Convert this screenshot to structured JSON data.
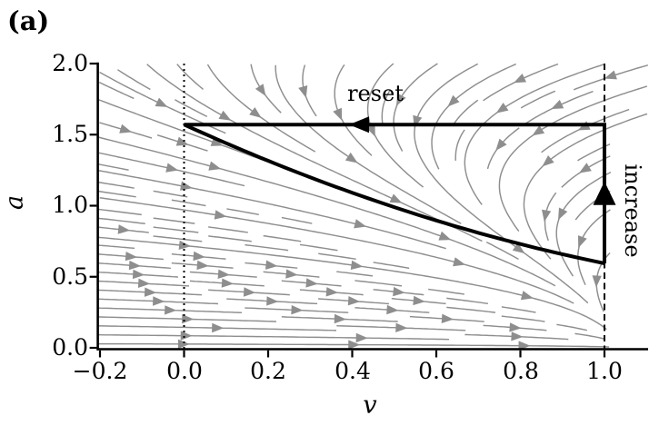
{
  "panel_label": "(a)",
  "axes": {
    "xlabel": "v",
    "ylabel": "a",
    "x_tick_labels": [
      "−0.2",
      "0.0",
      "0.2",
      "0.4",
      "0.6",
      "0.8",
      "1.0"
    ],
    "y_tick_labels": [
      "2.0",
      "1.5",
      "1.0",
      "0.5",
      "0.0"
    ]
  },
  "annotations": {
    "reset": "reset",
    "increase": "increase"
  },
  "chart_data": {
    "type": "streamplot-phase-portrait",
    "title": "",
    "xlabel": "v",
    "ylabel": "a",
    "xlim": [
      -0.204,
      1.104
    ],
    "ylim": [
      0.0,
      2.0
    ],
    "x_ticks": [
      -0.2,
      0.0,
      0.2,
      0.4,
      0.6,
      0.8,
      1.0
    ],
    "y_ticks": [
      0.0,
      0.5,
      1.0,
      1.5,
      2.0
    ],
    "grid": false,
    "legend": false,
    "guides": {
      "dotted_vline_v": 0.0,
      "dashed_vline_v": 1.0
    },
    "limit_cycle": {
      "reset_a_level": 1.5708,
      "spike_v": 1.0,
      "reset_target_v": 0.0,
      "a_end": 0.594,
      "curve_coeffs": {
        "a0": 1.5708,
        "a1": -1.348,
        "a2": 0.3715
      },
      "curve_points": [
        [
          0.0,
          1.571
        ],
        [
          0.11,
          1.43
        ],
        [
          0.21,
          1.33
        ],
        [
          0.33,
          1.17
        ],
        [
          0.49,
          1.0
        ],
        [
          0.62,
          0.87
        ],
        [
          0.77,
          0.75
        ],
        [
          0.9,
          0.67
        ],
        [
          1.0,
          0.594
        ]
      ],
      "reset_arrow": {
        "v": 0.41,
        "a": 1.5708,
        "dir": "left"
      },
      "increase_arrow": {
        "v": 1.0,
        "a": 1.086,
        "dir": "up"
      }
    },
    "stream_field": {
      "dv_formula": "1.03 - 0.02*a - 0.2*a^2 - v",
      "da_formula": "-0.38*a",
      "c": [
        1.03,
        -0.02,
        -0.2
      ],
      "k": -0.38
    },
    "colors": {
      "stream": "#8e8e8e",
      "trajectory": "#000000",
      "axis": "#000000",
      "background": "#ffffff"
    }
  }
}
